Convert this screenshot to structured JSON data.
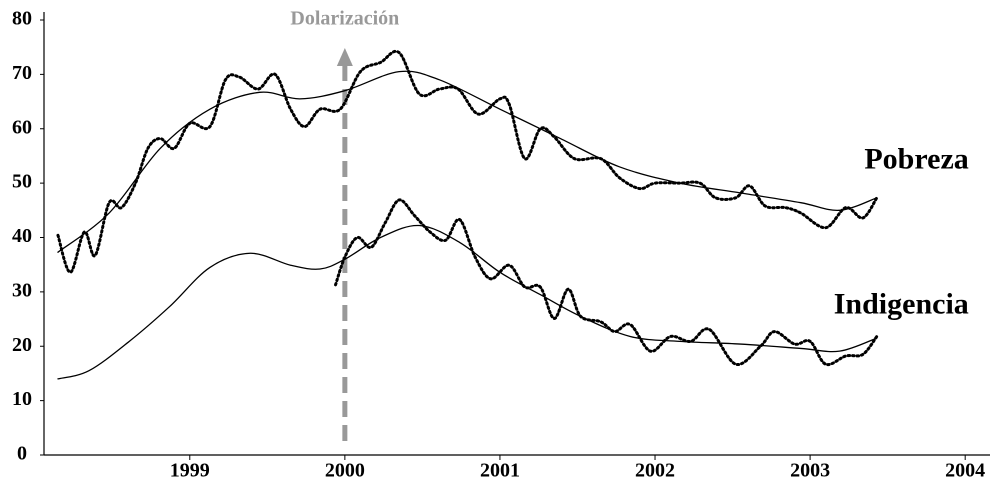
{
  "chart_data": {
    "type": "line",
    "annotations": [
      {
        "text": "Dolarización",
        "x": 2000
      }
    ],
    "xlim": [
      1998.06,
      2004.16
    ],
    "xticks": [
      1999,
      2000,
      2001,
      2002,
      2003,
      2004
    ],
    "ylim": [
      0,
      80
    ],
    "yticks": [
      0,
      10,
      20,
      30,
      40,
      50,
      60,
      70,
      80
    ],
    "series": [
      {
        "name": "Pobreza",
        "color": "#000",
        "style": "dotted",
        "x": [
          1998.15,
          1998.23,
          1998.32,
          1998.39,
          1998.48,
          1998.56,
          1998.65,
          1998.73,
          1998.81,
          1998.9,
          1999.0,
          1999.13,
          1999.23,
          1999.32,
          1999.44,
          1999.55,
          1999.65,
          1999.74,
          1999.84,
          1999.97,
          2000.1,
          2000.23,
          2000.35,
          2000.48,
          2000.61,
          2000.73,
          2000.86,
          2001.0,
          2001.06,
          2001.16,
          2001.26,
          2001.35,
          2001.48,
          2001.65,
          2001.77,
          2001.9,
          2002.0,
          2002.16,
          2002.29,
          2002.39,
          2002.52,
          2002.61,
          2002.71,
          2002.84,
          2002.94,
          2003.1,
          2003.23,
          2003.34,
          2003.43
        ],
        "values": [
          40.4,
          33.6,
          41,
          36.7,
          46.4,
          45.5,
          50,
          56.4,
          58.2,
          56.4,
          61,
          60.4,
          69,
          69.5,
          67.3,
          70,
          63.6,
          60.4,
          63.6,
          63.6,
          70.5,
          72.2,
          74,
          66.4,
          67.3,
          67.3,
          62.7,
          65.5,
          64.5,
          54.5,
          60,
          58.5,
          54.5,
          54.5,
          51,
          49,
          50,
          50,
          50,
          47.3,
          47.3,
          49.5,
          45.8,
          45.5,
          44.5,
          41.8,
          45.5,
          43.6,
          47.3
        ]
      },
      {
        "color": "#000",
        "style": "solid",
        "x": [
          1998.15,
          1998.48,
          1998.81,
          1999.13,
          1999.45,
          1999.71,
          2000.0,
          2000.35,
          2000.61,
          2001.0,
          2001.39,
          2001.77,
          2002.16,
          2002.55,
          2002.94,
          2003.19,
          2003.43
        ],
        "values": [
          37.3,
          44.5,
          56.4,
          63.6,
          66.7,
          65.5,
          67,
          70.5,
          69,
          63.6,
          58.2,
          53,
          50,
          48.2,
          46.4,
          45,
          47.3
        ]
      },
      {
        "name": "Indigencia",
        "color": "#000",
        "style": "dotted",
        "x": [
          1999.94,
          2000.0,
          2000.08,
          2000.17,
          2000.26,
          2000.35,
          2000.45,
          2000.55,
          2000.65,
          2000.74,
          2000.84,
          2000.94,
          2001.06,
          2001.16,
          2001.26,
          2001.35,
          2001.44,
          2001.52,
          2001.65,
          2001.74,
          2001.84,
          2001.97,
          2002.1,
          2002.23,
          2002.35,
          2002.52,
          2002.68,
          2002.77,
          2002.9,
          2003.0,
          2003.1,
          2003.23,
          2003.34,
          2003.43
        ],
        "values": [
          31.3,
          36.4,
          40,
          38.2,
          42.7,
          46.9,
          44,
          41,
          39.5,
          43.3,
          36.4,
          32.4,
          34.9,
          30.9,
          30.9,
          25.1,
          30.5,
          25.5,
          24.5,
          22.7,
          24,
          19.1,
          21.8,
          20.9,
          23.1,
          16.7,
          20,
          22.7,
          20.4,
          20.9,
          16.7,
          18.2,
          18.5,
          21.8
        ]
      },
      {
        "color": "#000",
        "style": "solid",
        "x": [
          1998.15,
          1998.35,
          1998.61,
          1998.87,
          1999.13,
          1999.39,
          1999.65,
          1999.84,
          2000.0,
          2000.23,
          2000.48,
          2000.74,
          2001.0,
          2001.26,
          2001.52,
          2001.84,
          2002.16,
          2002.55,
          2002.94,
          2003.19,
          2003.43
        ],
        "values": [
          14,
          15.5,
          20.9,
          27.3,
          34.5,
          37.1,
          34.9,
          34.2,
          36,
          40,
          42.2,
          39.1,
          33.6,
          29.5,
          25.5,
          21.8,
          20.9,
          20.4,
          19.6,
          19.1,
          21.5
        ]
      }
    ]
  }
}
